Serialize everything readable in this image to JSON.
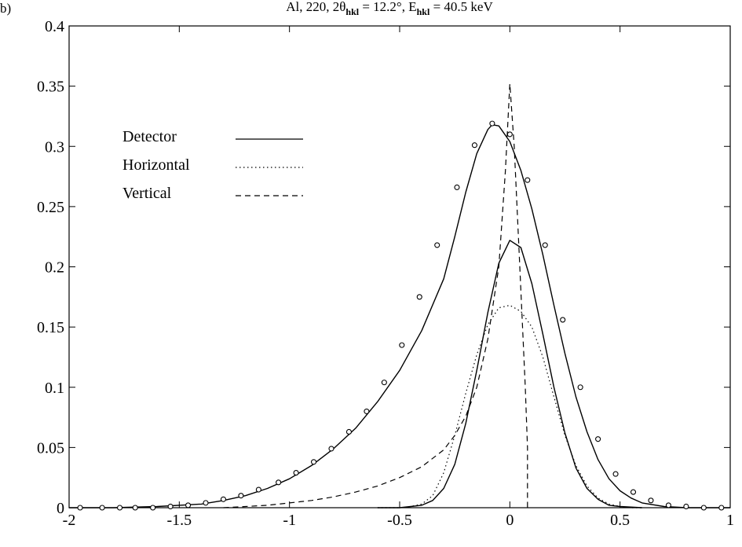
{
  "chart_data": {
    "type": "line",
    "panel_label": "b)",
    "title": {
      "element": "Al",
      "reflection": "220",
      "angle_prefix": "2θ",
      "angle_sub": "hkl",
      "angle_value": " = 12.2°",
      "energy_prefix": "E",
      "energy_sub": "hkl",
      "energy_value": " = 40.5 keV"
    },
    "xlabel": "",
    "ylabel": "",
    "xlim": [
      -2,
      1
    ],
    "ylim": [
      0,
      0.4
    ],
    "x_ticks": [
      -2,
      -1.5,
      -1,
      -0.5,
      0,
      0.5,
      1
    ],
    "x_tick_labels": [
      "-2",
      "-1.5",
      "-1",
      "-0.5",
      "0",
      "0.5",
      "1"
    ],
    "y_ticks": [
      0,
      0.05,
      0.1,
      0.15,
      0.2,
      0.25,
      0.3,
      0.35,
      0.4
    ],
    "y_tick_labels": [
      "0",
      "0.05",
      "0.1",
      "0.15",
      "0.2",
      "0.25",
      "0.3",
      "0.35",
      "0.4"
    ],
    "grid": false,
    "legend_position": "upper-left",
    "legend": [
      {
        "label": "Detector",
        "style": "solid"
      },
      {
        "label": "Horizontal",
        "style": "dotted"
      },
      {
        "label": "Vertical",
        "style": "dashed"
      }
    ],
    "series": [
      {
        "style": "solid",
        "x": [
          -2.0,
          -1.8,
          -1.6,
          -1.4,
          -1.3,
          -1.2,
          -1.1,
          -1.0,
          -0.9,
          -0.8,
          -0.7,
          -0.6,
          -0.5,
          -0.4,
          -0.3,
          -0.25,
          -0.2,
          -0.15,
          -0.1,
          -0.08,
          -0.05,
          0.0,
          0.05,
          0.1,
          0.15,
          0.2,
          0.25,
          0.3,
          0.35,
          0.4,
          0.45,
          0.5,
          0.55,
          0.6,
          0.7,
          0.8,
          0.9,
          1.0
        ],
        "y": [
          0.0,
          0.0,
          0.001,
          0.003,
          0.006,
          0.01,
          0.016,
          0.024,
          0.035,
          0.049,
          0.066,
          0.088,
          0.114,
          0.147,
          0.19,
          0.225,
          0.262,
          0.294,
          0.314,
          0.318,
          0.317,
          0.304,
          0.28,
          0.248,
          0.21,
          0.168,
          0.128,
          0.092,
          0.063,
          0.04,
          0.024,
          0.014,
          0.008,
          0.004,
          0.001,
          0.0,
          0.0,
          0.0
        ]
      },
      {
        "style": "solid",
        "x": [
          -0.6,
          -0.5,
          -0.45,
          -0.4,
          -0.35,
          -0.3,
          -0.25,
          -0.2,
          -0.15,
          -0.1,
          -0.05,
          0.0,
          0.05,
          0.1,
          0.15,
          0.2,
          0.25,
          0.3,
          0.35,
          0.4,
          0.45,
          0.5,
          0.6
        ],
        "y": [
          0.0,
          0.0,
          0.001,
          0.002,
          0.006,
          0.016,
          0.036,
          0.07,
          0.114,
          0.162,
          0.203,
          0.222,
          0.216,
          0.186,
          0.144,
          0.1,
          0.062,
          0.033,
          0.016,
          0.007,
          0.002,
          0.001,
          0.0
        ]
      },
      {
        "style": "dotted",
        "x": [
          -0.6,
          -0.5,
          -0.45,
          -0.4,
          -0.35,
          -0.3,
          -0.25,
          -0.2,
          -0.15,
          -0.1,
          -0.05,
          0.0,
          0.05,
          0.1,
          0.15,
          0.2,
          0.25,
          0.3,
          0.35,
          0.4,
          0.45,
          0.5,
          0.55,
          0.6
        ],
        "y": [
          0.0,
          0.0,
          0.001,
          0.003,
          0.01,
          0.029,
          0.06,
          0.095,
          0.127,
          0.152,
          0.166,
          0.168,
          0.163,
          0.15,
          0.125,
          0.092,
          0.06,
          0.035,
          0.018,
          0.008,
          0.003,
          0.001,
          0.0,
          0.0
        ]
      },
      {
        "style": "dashed",
        "x": [
          -1.3,
          -1.2,
          -1.1,
          -1.0,
          -0.9,
          -0.8,
          -0.7,
          -0.6,
          -0.5,
          -0.4,
          -0.3,
          -0.25,
          -0.2,
          -0.15,
          -0.1,
          -0.05,
          -0.02,
          0.0,
          0.02,
          0.04,
          0.06,
          0.07,
          0.075,
          0.08,
          0.08
        ],
        "y": [
          0.0,
          0.001,
          0.002,
          0.004,
          0.006,
          0.009,
          0.013,
          0.018,
          0.025,
          0.034,
          0.048,
          0.06,
          0.076,
          0.1,
          0.14,
          0.2,
          0.28,
          0.352,
          0.3,
          0.22,
          0.14,
          0.1,
          0.075,
          0.05,
          0.0
        ]
      }
    ],
    "markers": {
      "style": "open-circle",
      "x": [
        -1.95,
        -1.85,
        -1.77,
        -1.7,
        -1.62,
        -1.54,
        -1.46,
        -1.38,
        -1.3,
        -1.22,
        -1.14,
        -1.05,
        -0.97,
        -0.89,
        -0.81,
        -0.73,
        -0.65,
        -0.57,
        -0.49,
        -0.41,
        -0.33,
        -0.24,
        -0.16,
        -0.08,
        0.0,
        0.08,
        0.16,
        0.24,
        0.32,
        0.4,
        0.48,
        0.56,
        0.64,
        0.72,
        0.8,
        0.88,
        0.96
      ],
      "y": [
        0.0,
        0.0,
        0.0,
        0.0,
        0.0,
        0.001,
        0.002,
        0.004,
        0.007,
        0.01,
        0.015,
        0.021,
        0.029,
        0.038,
        0.049,
        0.063,
        0.08,
        0.104,
        0.135,
        0.175,
        0.218,
        0.266,
        0.301,
        0.319,
        0.31,
        0.272,
        0.218,
        0.156,
        0.1,
        0.057,
        0.028,
        0.013,
        0.006,
        0.002,
        0.001,
        0.0,
        0.0
      ]
    }
  }
}
